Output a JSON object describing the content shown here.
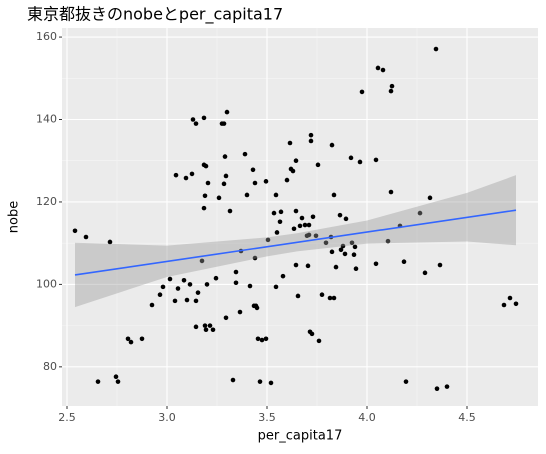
{
  "chart_data": {
    "type": "scatter",
    "title": "東京都抜きのnobeとper_capita17",
    "x_label": "per_capita17",
    "y_label": "nobe",
    "x": [
      2.54,
      2.595,
      2.715,
      2.655,
      2.745,
      2.755,
      2.805,
      2.82,
      2.875,
      2.925,
      2.965,
      2.98,
      3.015,
      3.045,
      3.04,
      3.055,
      3.085,
      3.095,
      3.1,
      3.115,
      3.125,
      3.13,
      3.145,
      3.145,
      3.145,
      3.155,
      3.175,
      3.185,
      3.185,
      3.195,
      3.185,
      3.19,
      3.19,
      3.195,
      3.2,
      3.205,
      3.215,
      3.23,
      3.245,
      3.26,
      3.275,
      3.285,
      3.29,
      3.285,
      3.295,
      3.3,
      3.295,
      3.315,
      3.33,
      3.345,
      3.345,
      3.365,
      3.37,
      3.39,
      3.4,
      3.415,
      3.43,
      3.435,
      3.44,
      3.44,
      3.445,
      3.45,
      3.455,
      3.465,
      3.475,
      3.495,
      3.495,
      3.505,
      3.52,
      3.535,
      3.545,
      3.545,
      3.55,
      3.565,
      3.57,
      3.58,
      3.6,
      3.615,
      3.62,
      3.63,
      3.635,
      3.645,
      3.645,
      3.645,
      3.655,
      3.665,
      3.675,
      3.69,
      3.7,
      3.71,
      3.71,
      3.705,
      3.715,
      3.72,
      3.72,
      3.725,
      3.73,
      3.745,
      3.755,
      3.76,
      3.775,
      3.795,
      3.815,
      3.82,
      3.825,
      3.825,
      3.835,
      3.835,
      3.845,
      3.865,
      3.87,
      3.88,
      3.89,
      3.895,
      3.92,
      3.925,
      3.935,
      3.94,
      3.945,
      3.965,
      3.975,
      4.045,
      4.045,
      4.055,
      4.08,
      4.105,
      4.12,
      4.125,
      4.12,
      4.165,
      4.185,
      4.195,
      4.265,
      4.29,
      4.315,
      4.345,
      4.35,
      4.365,
      4.4,
      4.685,
      4.715,
      4.745
    ],
    "values": [
      113,
      111.5,
      110.3,
      76.4,
      77.6,
      76.4,
      86.8,
      86,
      86.8,
      95,
      97.5,
      99.4,
      101.3,
      126.5,
      96,
      99,
      101,
      125.8,
      96.2,
      100,
      126.8,
      140,
      96,
      139,
      89.7,
      98,
      105.7,
      140.4,
      129,
      128.7,
      118.5,
      121.5,
      90,
      89,
      100,
      124.6,
      90,
      89,
      101.5,
      121,
      139,
      139,
      131,
      124.4,
      126.3,
      141.8,
      91.9,
      117.8,
      76.8,
      103,
      100.4,
      93.3,
      108.1,
      131.6,
      121.7,
      99.6,
      127.8,
      94.8,
      124.6,
      106.4,
      94.8,
      94.3,
      86.8,
      76.4,
      86.5,
      125,
      86.8,
      110.8,
      76.1,
      117.3,
      121.7,
      99.4,
      112.6,
      115.2,
      117.6,
      102,
      125.3,
      134.3,
      128,
      127.5,
      113.5,
      117.8,
      130,
      104.7,
      97.2,
      114.2,
      116.1,
      114.4,
      111.8,
      112,
      114.4,
      104.5,
      88.5,
      136.2,
      134.8,
      88,
      116.4,
      111.8,
      129,
      86.3,
      97.5,
      110.1,
      96.7,
      111.5,
      107.9,
      133.8,
      121.7,
      96.7,
      104.2,
      116.8,
      108.4,
      109.3,
      107.4,
      115.9,
      130.7,
      110.1,
      107.2,
      109.1,
      103.8,
      129.7,
      146.7,
      130.2,
      105,
      152.5,
      152,
      110.5,
      146.9,
      148.1,
      122.4,
      114.2,
      105.5,
      76.4,
      117.3,
      102.8,
      121,
      157.1,
      74.7,
      104.7,
      75.2,
      95,
      96.7,
      95.3
    ],
    "color": "#000000",
    "fit": {
      "x": [
        2.54,
        4.745
      ],
      "y": [
        102.3,
        118
      ],
      "color": "#3366FF"
    },
    "ribbon": {
      "x": [
        2.54,
        3.0,
        3.5,
        3.65,
        4.0,
        4.5,
        4.745
      ],
      "lower": [
        94.5,
        101.8,
        106.8,
        108.0,
        109.9,
        110.4,
        109.5
      ],
      "upper": [
        110.1,
        109.4,
        111.4,
        112.4,
        115.5,
        122.2,
        126.5
      ],
      "color": "#999999"
    },
    "xlim": [
      2.475,
      4.855
    ],
    "ylim": [
      70.5,
      162.2
    ],
    "xticks": [
      2.5,
      {
        "value": 3.0,
        "label": "3.0"
      },
      3.5,
      {
        "value": 4.0,
        "label": "4.0"
      },
      4.5
    ],
    "yticks": [
      80,
      100,
      120,
      140,
      160
    ],
    "grid": true
  }
}
